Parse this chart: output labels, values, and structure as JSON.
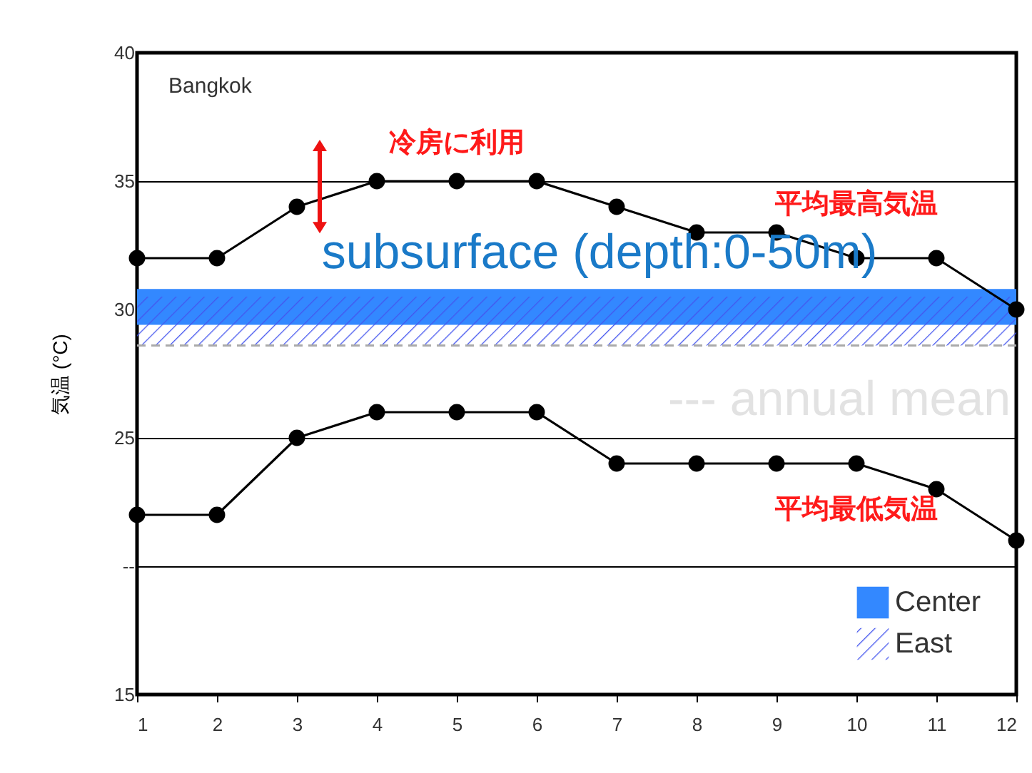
{
  "chart_data": {
    "type": "line",
    "title": "Bangkok",
    "ylabel": "気温 (°C)",
    "x": [
      1,
      2,
      3,
      4,
      5,
      6,
      7,
      8,
      9,
      10,
      11,
      12
    ],
    "series": [
      {
        "name": "平均最高気温",
        "color": "#000000",
        "values": [
          32,
          32,
          34,
          35,
          35,
          35,
          34,
          33,
          33,
          32,
          32,
          30
        ]
      },
      {
        "name": "平均最低気温",
        "color": "#000000",
        "values": [
          22,
          22,
          25,
          26,
          26,
          26,
          24,
          24,
          24,
          24,
          23,
          21
        ]
      }
    ],
    "bands": [
      {
        "axis": "y",
        "from": 29.4,
        "to": 30.8,
        "label": "Center",
        "color": "#3388ff"
      },
      {
        "axis": "y",
        "from": 28.6,
        "to": 30.5,
        "label": "East",
        "color": "#4455ee"
      }
    ],
    "ref_lines": [
      {
        "axis": "y",
        "value": 28.6,
        "label": "--- annual mean",
        "color": "#aaaaaa",
        "line_style": "dashed"
      }
    ],
    "annotations": [
      "冷房に利用",
      "subsurface (depth:0-50m)"
    ],
    "xlim": [
      1,
      12
    ],
    "xticks": [
      1,
      2,
      3,
      4,
      5,
      6,
      7,
      8,
      9,
      10,
      11,
      12
    ],
    "ylim": [
      15,
      40
    ],
    "yticks": [
      15,
      {
        "value": 20,
        "label": "--"
      },
      25,
      30,
      35,
      40
    ],
    "grid": "y",
    "legend": "bottom right",
    "marker": "circle",
    "line_style": "solid"
  }
}
